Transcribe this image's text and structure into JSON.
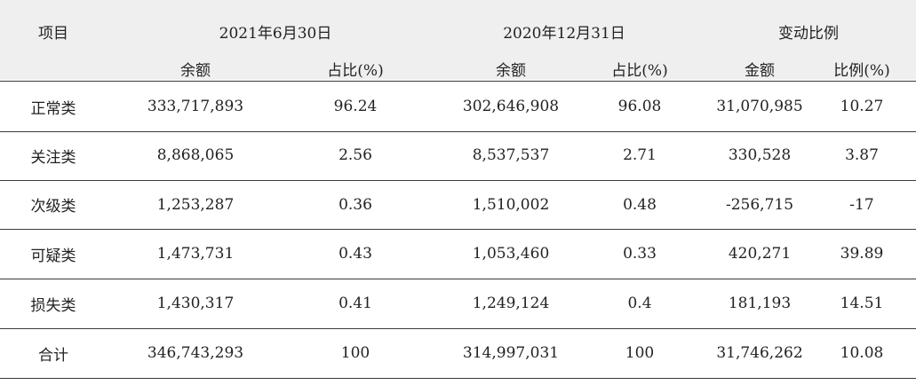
{
  "header": {
    "item": "项目",
    "period1": "2021年6月30日",
    "period2": "2020年12月31日",
    "change": "变动比例",
    "balance1": "余额",
    "ratio1": "占比(%)",
    "balance2": "余额",
    "ratio2": "占比(%)",
    "amount": "金额",
    "change_ratio": "比例(%)"
  },
  "rows": [
    {
      "name": "正常类",
      "bal1": "333,717,893",
      "pct1": "96.24",
      "bal2": "302,646,908",
      "pct2": "96.08",
      "amt": "31,070,985",
      "chg": "10.27"
    },
    {
      "name": "关注类",
      "bal1": "8,868,065",
      "pct1": "2.56",
      "bal2": "8,537,537",
      "pct2": "2.71",
      "amt": "330,528",
      "chg": "3.87"
    },
    {
      "name": "次级类",
      "bal1": "1,253,287",
      "pct1": "0.36",
      "bal2": "1,510,002",
      "pct2": "0.48",
      "amt": "-256,715",
      "chg": "-17"
    },
    {
      "name": "可疑类",
      "bal1": "1,473,731",
      "pct1": "0.43",
      "bal2": "1,053,460",
      "pct2": "0.33",
      "amt": "420,271",
      "chg": "39.89"
    },
    {
      "name": "损失类",
      "bal1": "1,430,317",
      "pct1": "0.41",
      "bal2": "1,249,124",
      "pct2": "0.4",
      "amt": "181,193",
      "chg": "14.51"
    },
    {
      "name": "合计",
      "bal1": "346,743,293",
      "pct1": "100",
      "bal2": "314,997,031",
      "pct2": "100",
      "amt": "31,746,262",
      "chg": "10.08"
    }
  ]
}
